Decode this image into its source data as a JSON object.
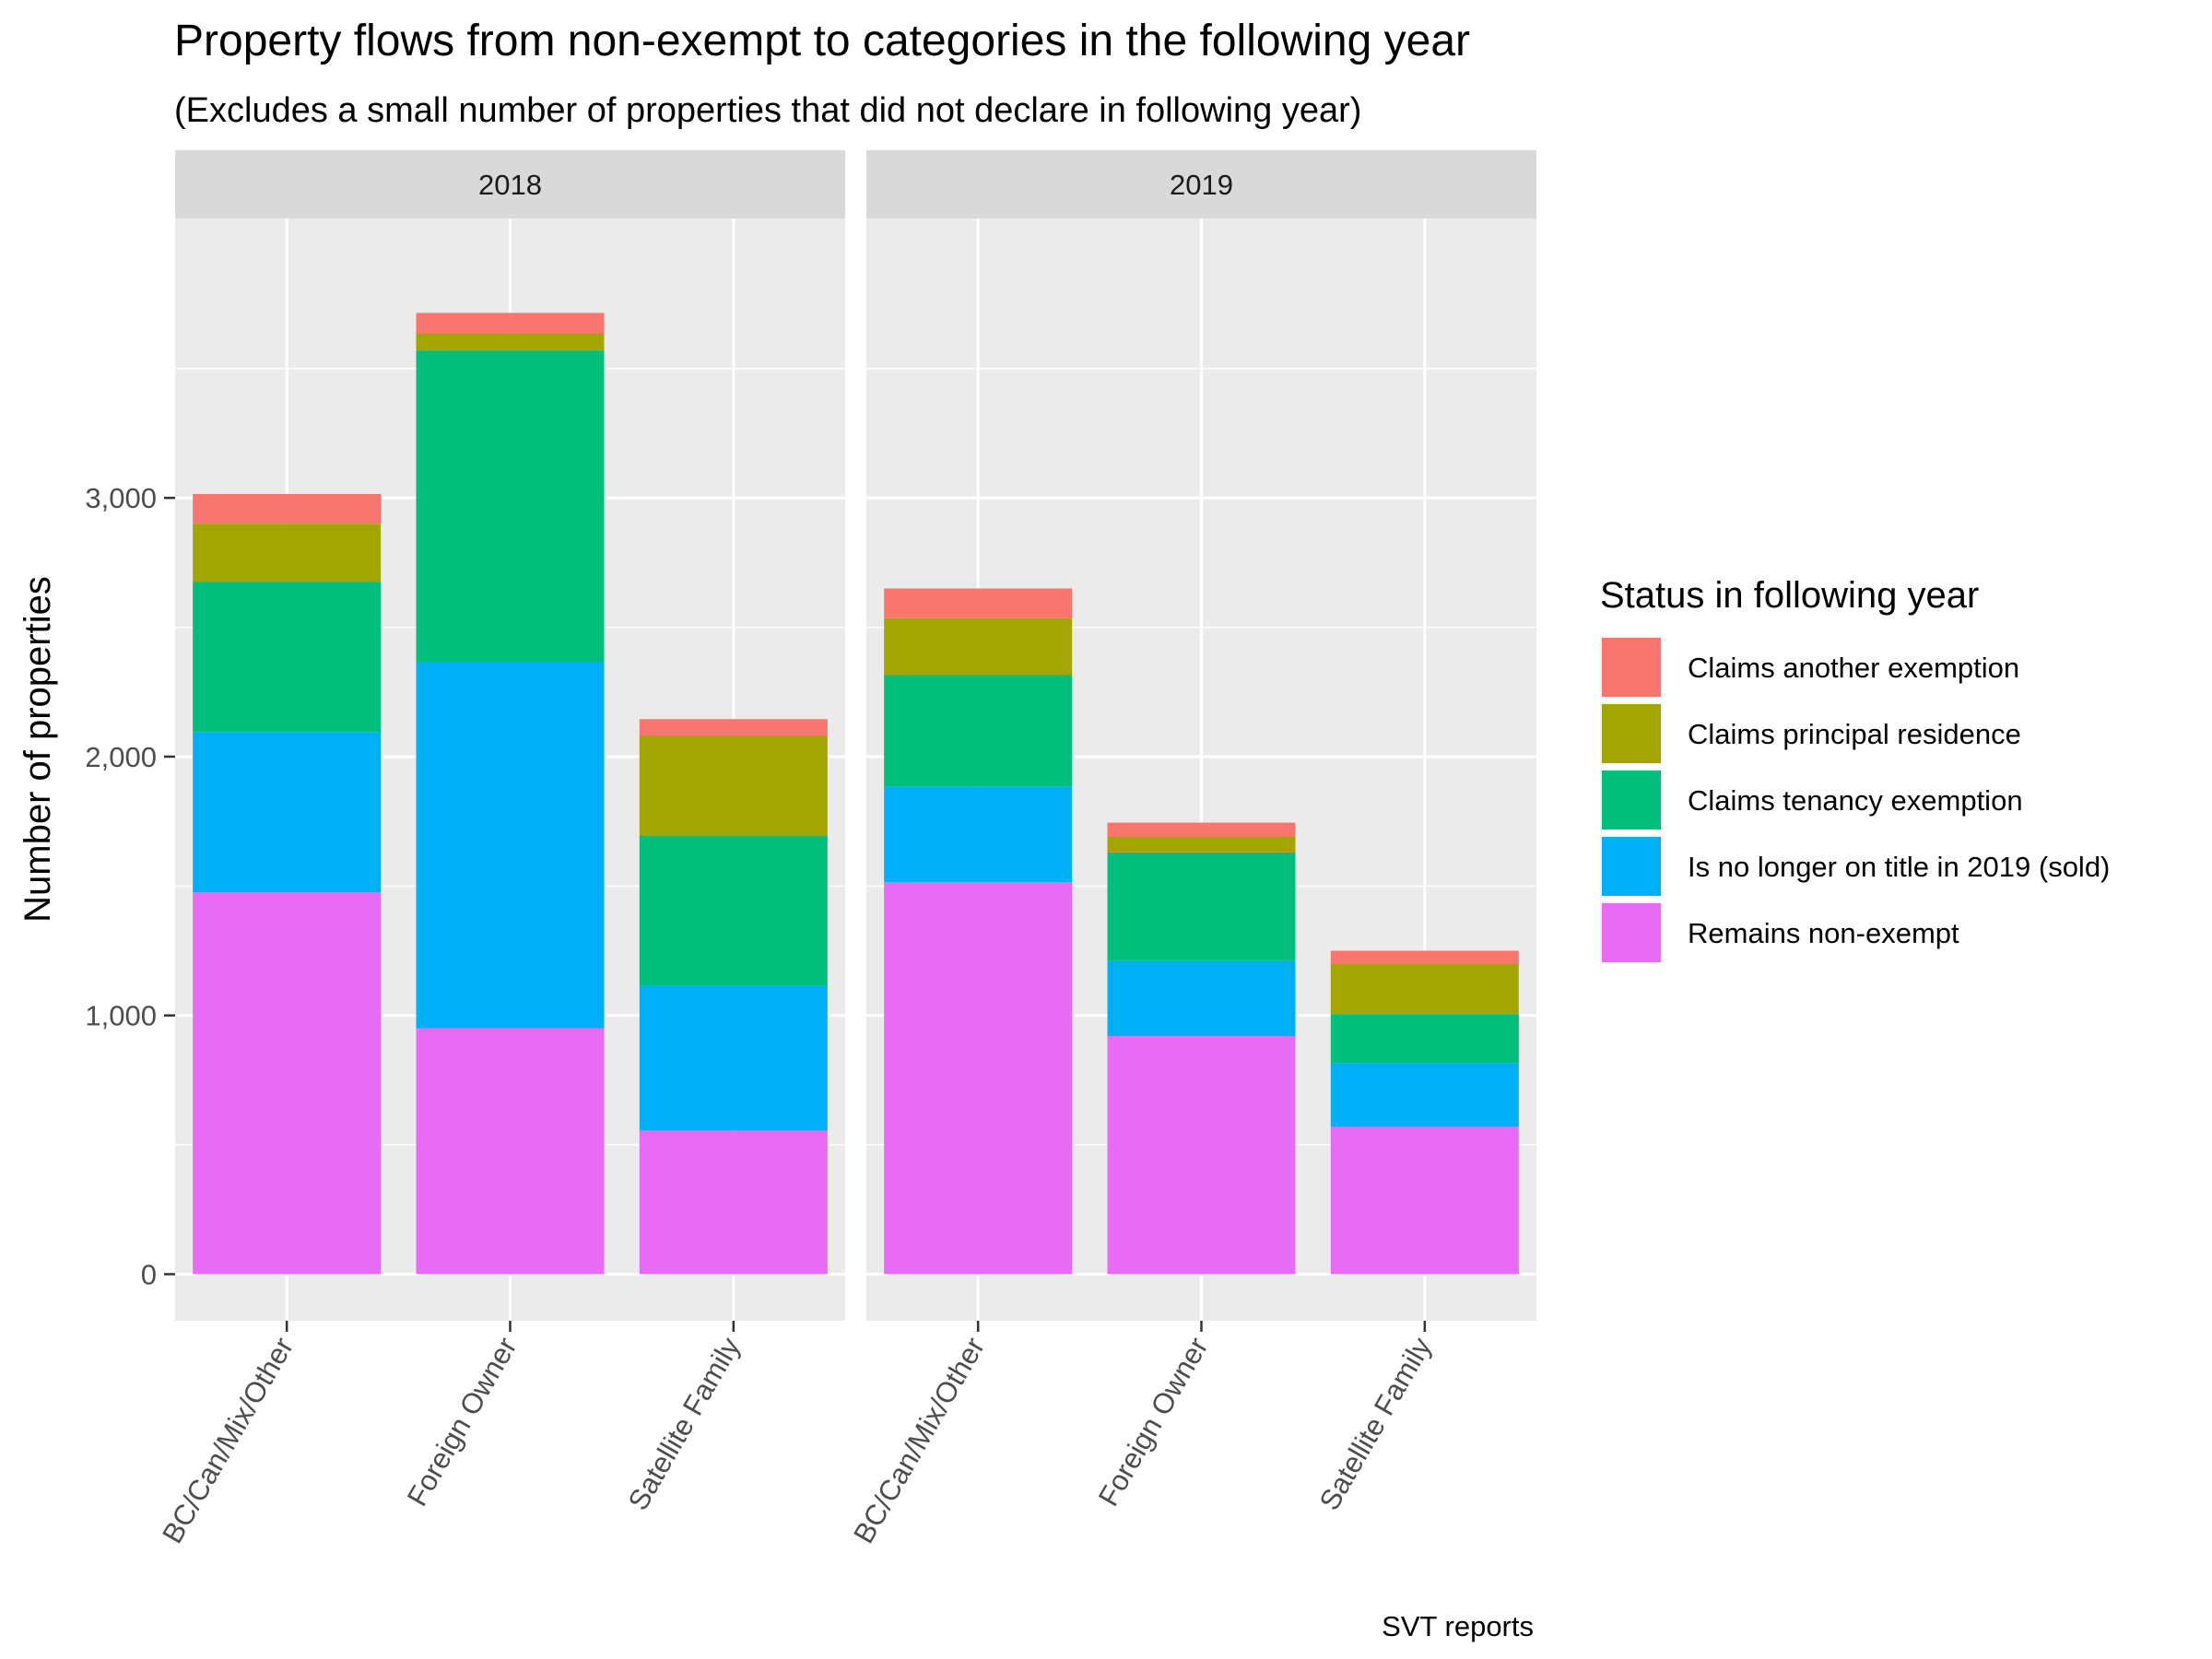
{
  "chart_data": {
    "type": "bar",
    "stacked": true,
    "title": "Property flows from non-exempt to categories in the following year",
    "subtitle": "(Excludes a small number of properties that did not declare in following year)",
    "ylabel": "Number of properties",
    "xlabel": "",
    "caption": "SVT reports",
    "ylim": [
      -180,
      4080
    ],
    "yticks": [
      0,
      1000,
      2000,
      3000
    ],
    "ytick_labels": [
      "0",
      "1,000",
      "2,000",
      "3,000"
    ],
    "yminor": [
      500,
      1500,
      2500,
      3500
    ],
    "grid": true,
    "legend_position": "right",
    "legend_title": "Status in following year",
    "categories": [
      "BC/Can/Mix/Other",
      "Foreign Owner",
      "Satellite Family"
    ],
    "panels": [
      {
        "label": "2018",
        "series": [
          {
            "name": "Remains non-exempt",
            "values": [
              1475,
              950,
              555
            ]
          },
          {
            "name": "Is no longer on title in 2019 (sold)",
            "values": [
              620,
              1415,
              560
            ]
          },
          {
            "name": "Claims tenancy exemption",
            "values": [
              580,
              1205,
              580
            ]
          },
          {
            "name": "Claims principal residence",
            "values": [
              225,
              65,
              385
            ]
          },
          {
            "name": "Claims another exemption",
            "values": [
              115,
              80,
              65
            ]
          }
        ]
      },
      {
        "label": "2019",
        "series": [
          {
            "name": "Remains non-exempt",
            "values": [
              1515,
              920,
              570
            ]
          },
          {
            "name": "Is no longer on title in 2019 (sold)",
            "values": [
              370,
              290,
              245
            ]
          },
          {
            "name": "Claims tenancy exemption",
            "values": [
              430,
              420,
              190
            ]
          },
          {
            "name": "Claims principal residence",
            "values": [
              220,
              60,
              195
            ]
          },
          {
            "name": "Claims another exemption",
            "values": [
              115,
              55,
              50
            ]
          }
        ]
      }
    ],
    "legend_order": [
      "Claims another exemption",
      "Claims principal residence",
      "Claims tenancy exemption",
      "Is no longer on title in 2019 (sold)",
      "Remains non-exempt"
    ],
    "colors": {
      "Claims another exemption": "#F8766D",
      "Claims principal residence": "#A3A500",
      "Claims tenancy exemption": "#00BF7D",
      "Is no longer on title in 2019 (sold)": "#00B0F6",
      "Remains non-exempt": "#E76BF3"
    },
    "panel_background": "#EBEBEB",
    "strip_background": "#D9D9D9",
    "grid_color": "#FFFFFF"
  }
}
